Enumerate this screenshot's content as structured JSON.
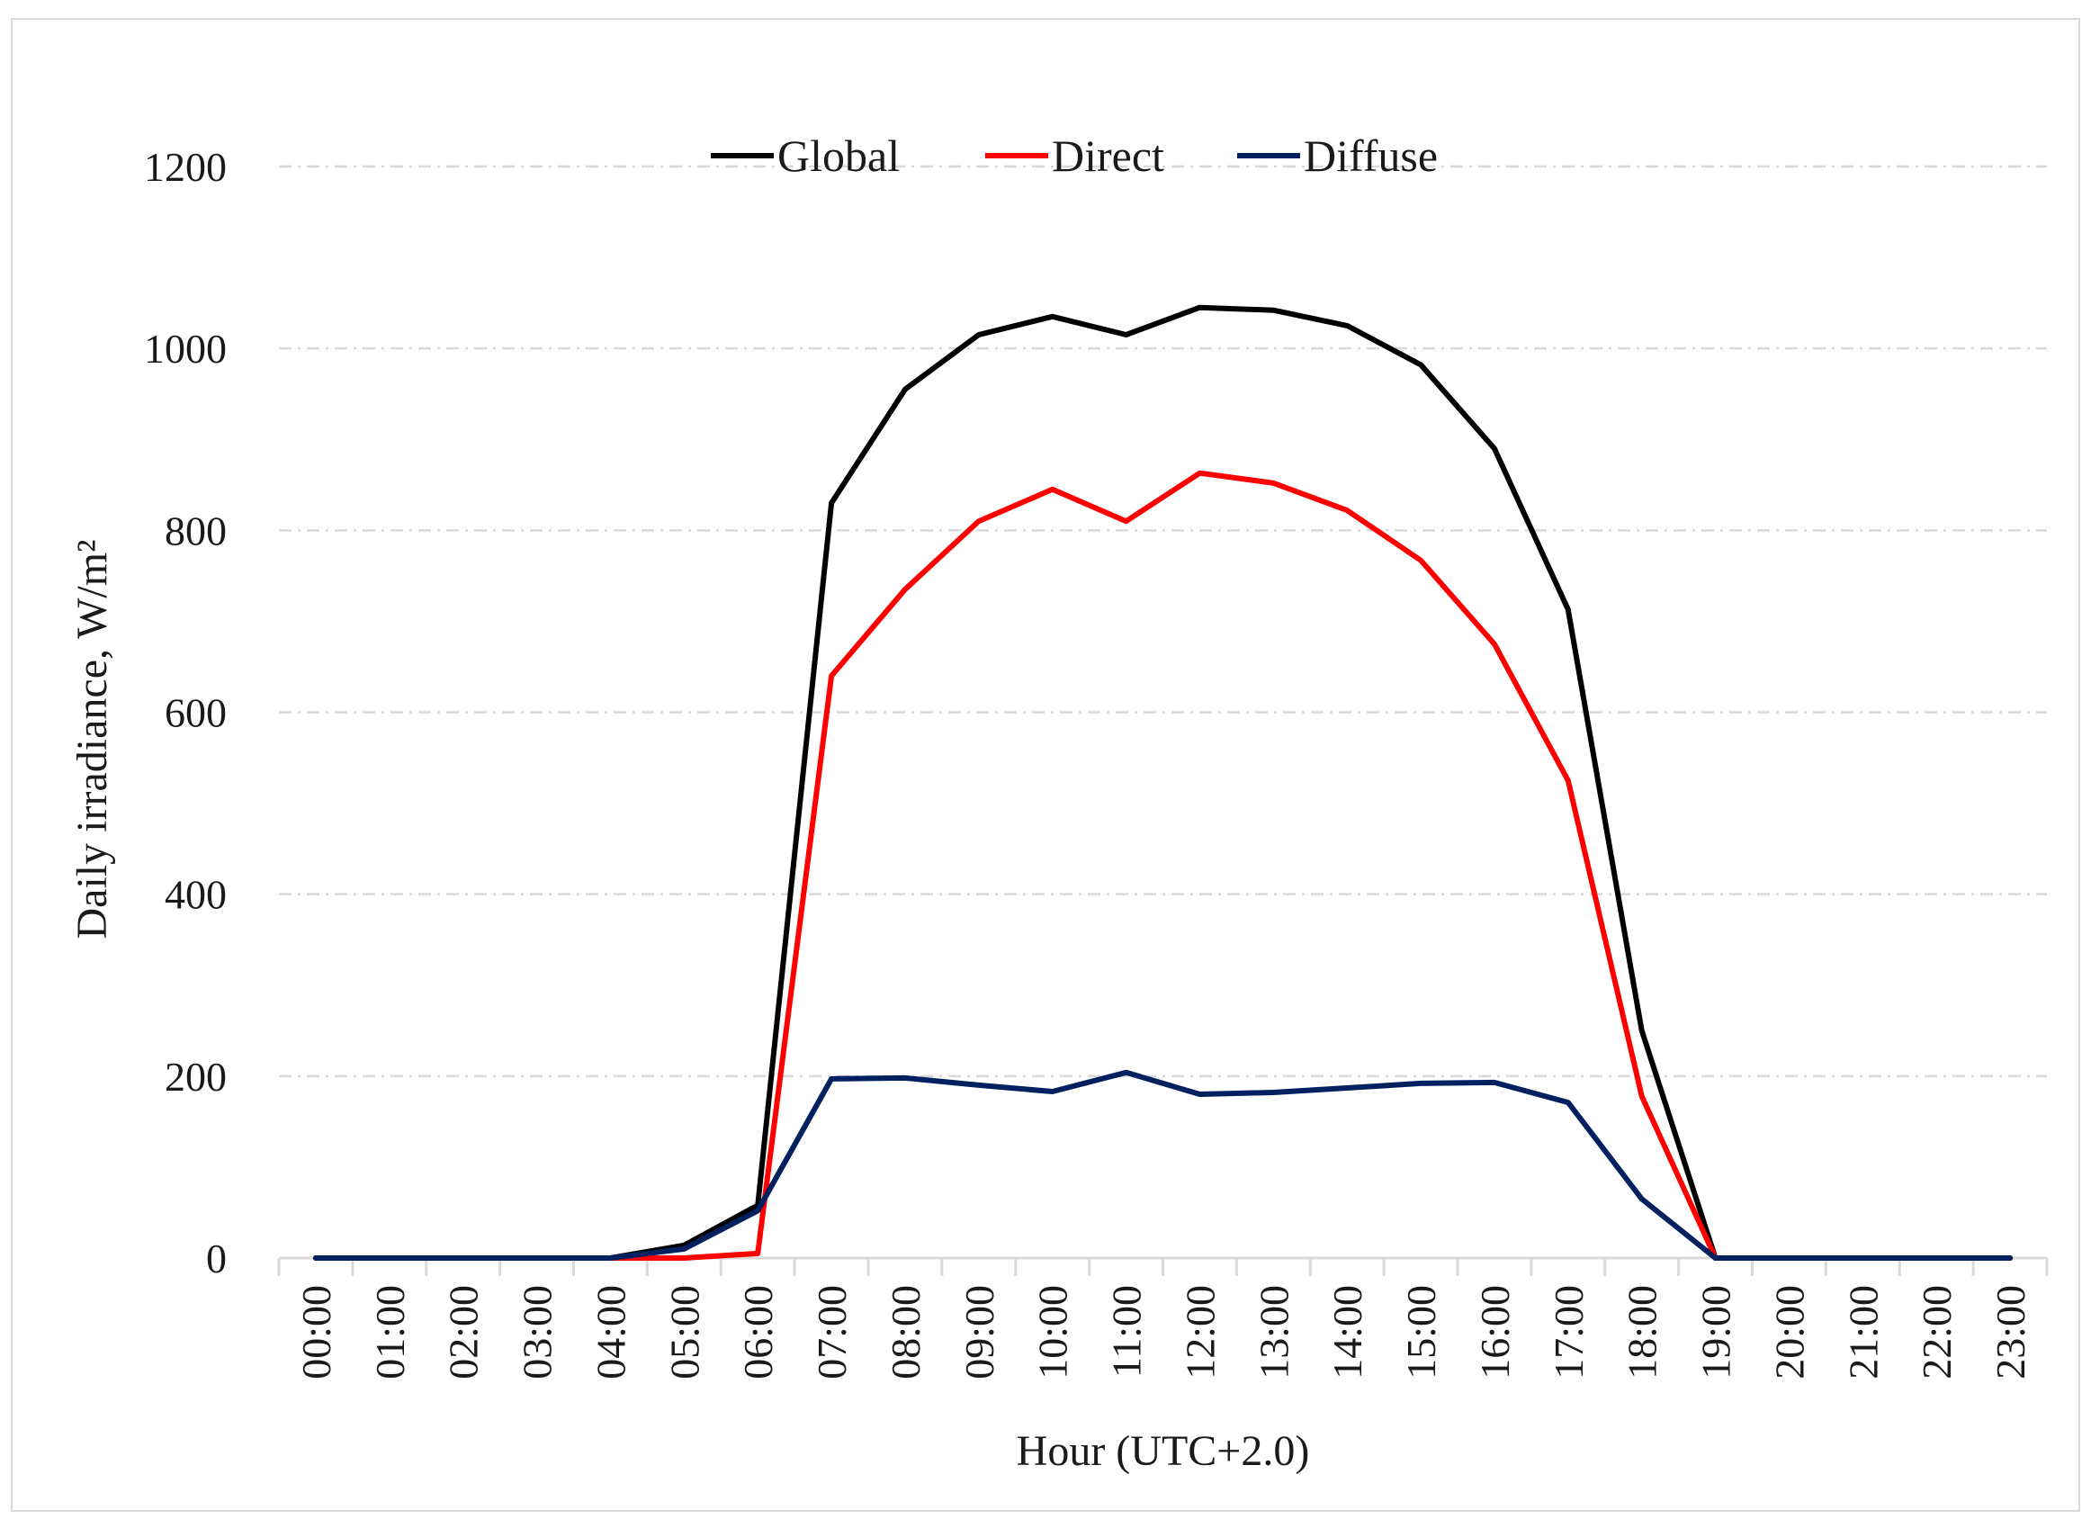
{
  "chart_data": {
    "type": "line",
    "title": "",
    "xlabel": "Hour (UTC+2.0)",
    "ylabel": "Daily irradiance,  W/m²",
    "ylim": [
      0,
      1200
    ],
    "yticks": [
      0,
      200,
      400,
      600,
      800,
      1000,
      1200
    ],
    "grid": true,
    "legend_position": "top",
    "categories": [
      "00:00",
      "01:00",
      "02:00",
      "03:00",
      "04:00",
      "05:00",
      "06:00",
      "07:00",
      "08:00",
      "09:00",
      "10:00",
      "11:00",
      "12:00",
      "13:00",
      "14:00",
      "15:00",
      "16:00",
      "17:00",
      "18:00",
      "19:00",
      "20:00",
      "21:00",
      "22:00",
      "23:00"
    ],
    "series": [
      {
        "name": "Global",
        "color": "#000000",
        "values": [
          0,
          0,
          0,
          0,
          0,
          14,
          58,
          830,
          955,
          1015,
          1035,
          1015,
          1045,
          1042,
          1025,
          982,
          890,
          713,
          250,
          0,
          0,
          0,
          0,
          0
        ]
      },
      {
        "name": "Direct",
        "color": "#ff0000",
        "values": [
          0,
          0,
          0,
          0,
          0,
          0,
          5,
          640,
          735,
          810,
          845,
          810,
          863,
          852,
          822,
          767,
          675,
          525,
          178,
          0,
          0,
          0,
          0,
          0
        ]
      },
      {
        "name": "Diffuse",
        "color": "#002060",
        "values": [
          0,
          0,
          0,
          0,
          0,
          10,
          52,
          197,
          198,
          190,
          183,
          204,
          180,
          182,
          187,
          192,
          193,
          171,
          65,
          0,
          0,
          0,
          0,
          0
        ]
      }
    ]
  }
}
